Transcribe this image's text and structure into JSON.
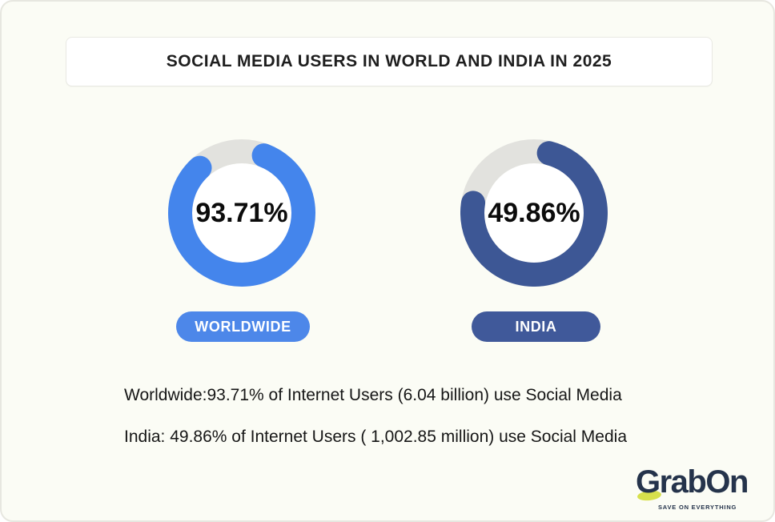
{
  "page": {
    "background": "#FBFCF5",
    "border_color": "#E7E7E0"
  },
  "header": {
    "title": "SOCIAL MEDIA USERS IN WORLD AND INDIA IN 2025"
  },
  "chart_data": {
    "type": "donut",
    "title": "SOCIAL MEDIA USERS IN WORLD AND INDIA IN 2025",
    "unit": "% of internet users using social media",
    "series": [
      {
        "name": "WORLDWIDE",
        "value_pct": 93.71,
        "label": "93.71%",
        "detail": "6.04 billion users",
        "color": "#4485EC",
        "legend_pill_color": "#4D87E9",
        "track_color": "#E2E2DE",
        "visual": {
          "fill_fraction": 0.822,
          "start_deg": 21
        }
      },
      {
        "name": "INDIA",
        "value_pct": 49.86,
        "label": "49.86%",
        "detail": "1,002.85 million users",
        "color": "#3D5795",
        "legend_pill_color": "#40599A",
        "track_color": "#E2E2DE",
        "visual": {
          "fill_fraction": 0.737,
          "start_deg": 14
        }
      }
    ],
    "legend_position": "pill label below each donut",
    "notes": [
      "Worldwide:93.71% of Internet Users (6.04 billion) use Social Media",
      "India: 49.86% of Internet Users ( 1,002.85 million) use Social Media"
    ]
  },
  "logo": {
    "brand": "GrabOn",
    "tagline": "SAVE ON EVERYTHING",
    "color": "#25334B",
    "accent_color": "#D7E04C"
  }
}
